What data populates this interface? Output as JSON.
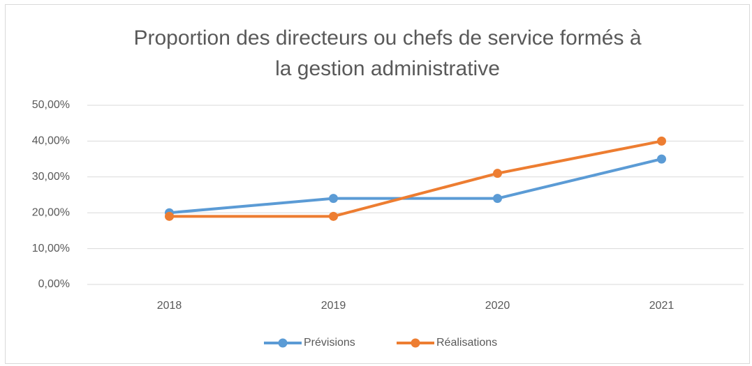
{
  "chart_data": {
    "type": "line",
    "title": [
      "Proportion des directeurs ou chefs de service formés à",
      "la gestion administrative"
    ],
    "categories": [
      "2018",
      "2019",
      "2020",
      "2021"
    ],
    "series": [
      {
        "name": "Prévisions",
        "color": "#5b9bd5",
        "values": [
          20,
          24,
          24,
          35
        ]
      },
      {
        "name": "Réalisations",
        "color": "#ed7d31",
        "values": [
          19,
          19,
          31,
          40
        ]
      }
    ],
    "ylim": [
      0,
      50
    ],
    "yticks": [
      {
        "value": 0,
        "label": "0,00%"
      },
      {
        "value": 10,
        "label": "10,00%"
      },
      {
        "value": 20,
        "label": "20,00%"
      },
      {
        "value": 30,
        "label": "30,00%"
      },
      {
        "value": 40,
        "label": "40,00%"
      },
      {
        "value": 50,
        "label": "50,00%"
      }
    ],
    "grid": true,
    "legend": "bottom"
  }
}
